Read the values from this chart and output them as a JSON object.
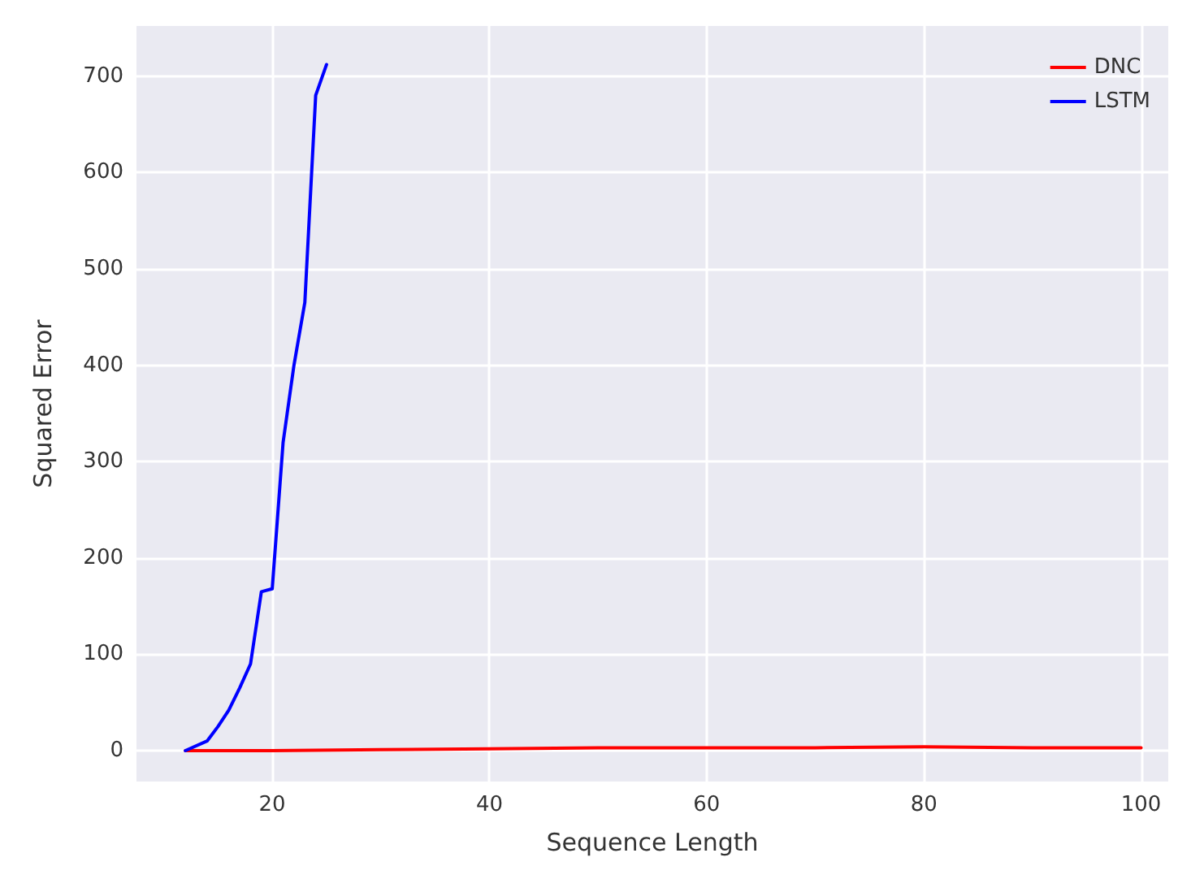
{
  "chart_data": {
    "type": "line",
    "xlabel": "Sequence Length",
    "ylabel": "Squared Error",
    "xlim": [
      7.5,
      102.5
    ],
    "ylim": [
      -32,
      752
    ],
    "xticks": [
      20,
      40,
      60,
      80,
      100
    ],
    "yticks": [
      0,
      100,
      200,
      300,
      400,
      500,
      600,
      700
    ],
    "grid": true,
    "legend": "top right",
    "line_style": "solid",
    "marker": "none",
    "series": [
      {
        "name": "DNC",
        "color": "#ff0000",
        "x": [
          12,
          20,
          30,
          40,
          50,
          60,
          70,
          80,
          90,
          100
        ],
        "values": [
          0,
          0,
          1,
          2,
          3,
          3,
          3,
          4,
          3,
          3
        ]
      },
      {
        "name": "LSTM",
        "color": "#0000ff",
        "x": [
          12,
          14,
          15,
          16,
          17,
          18,
          19,
          20,
          21,
          22,
          23,
          24,
          25
        ],
        "values": [
          0,
          10,
          25,
          42,
          65,
          90,
          165,
          168,
          320,
          400,
          465,
          680,
          712
        ]
      }
    ]
  }
}
